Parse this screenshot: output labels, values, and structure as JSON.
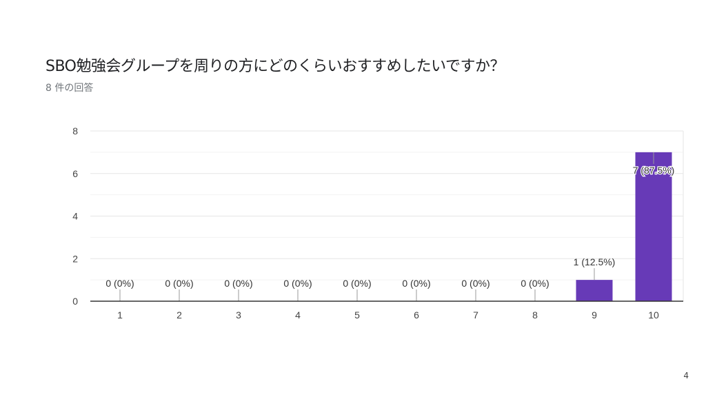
{
  "title": "SBO勉強会グループを周りの方にどのくらいおすすめしたいですか？",
  "subtitle": "8 件の回答",
  "page_number": "4",
  "chart_data": {
    "type": "bar",
    "categories": [
      "1",
      "2",
      "3",
      "4",
      "5",
      "6",
      "7",
      "8",
      "9",
      "10"
    ],
    "values": [
      0,
      0,
      0,
      0,
      0,
      0,
      0,
      0,
      1,
      7
    ],
    "data_labels": [
      "0 (0%)",
      "0 (0%)",
      "0 (0%)",
      "0 (0%)",
      "0 (0%)",
      "0 (0%)",
      "0 (0%)",
      "0 (0%)",
      "1 (12.5%)",
      "7 (87.5%)"
    ],
    "ylim": [
      0,
      8
    ],
    "yticks": [
      "0",
      "2",
      "4",
      "6",
      "8"
    ],
    "grid": true,
    "bar_color": "#673ab7",
    "xlabel": "",
    "ylabel": ""
  }
}
